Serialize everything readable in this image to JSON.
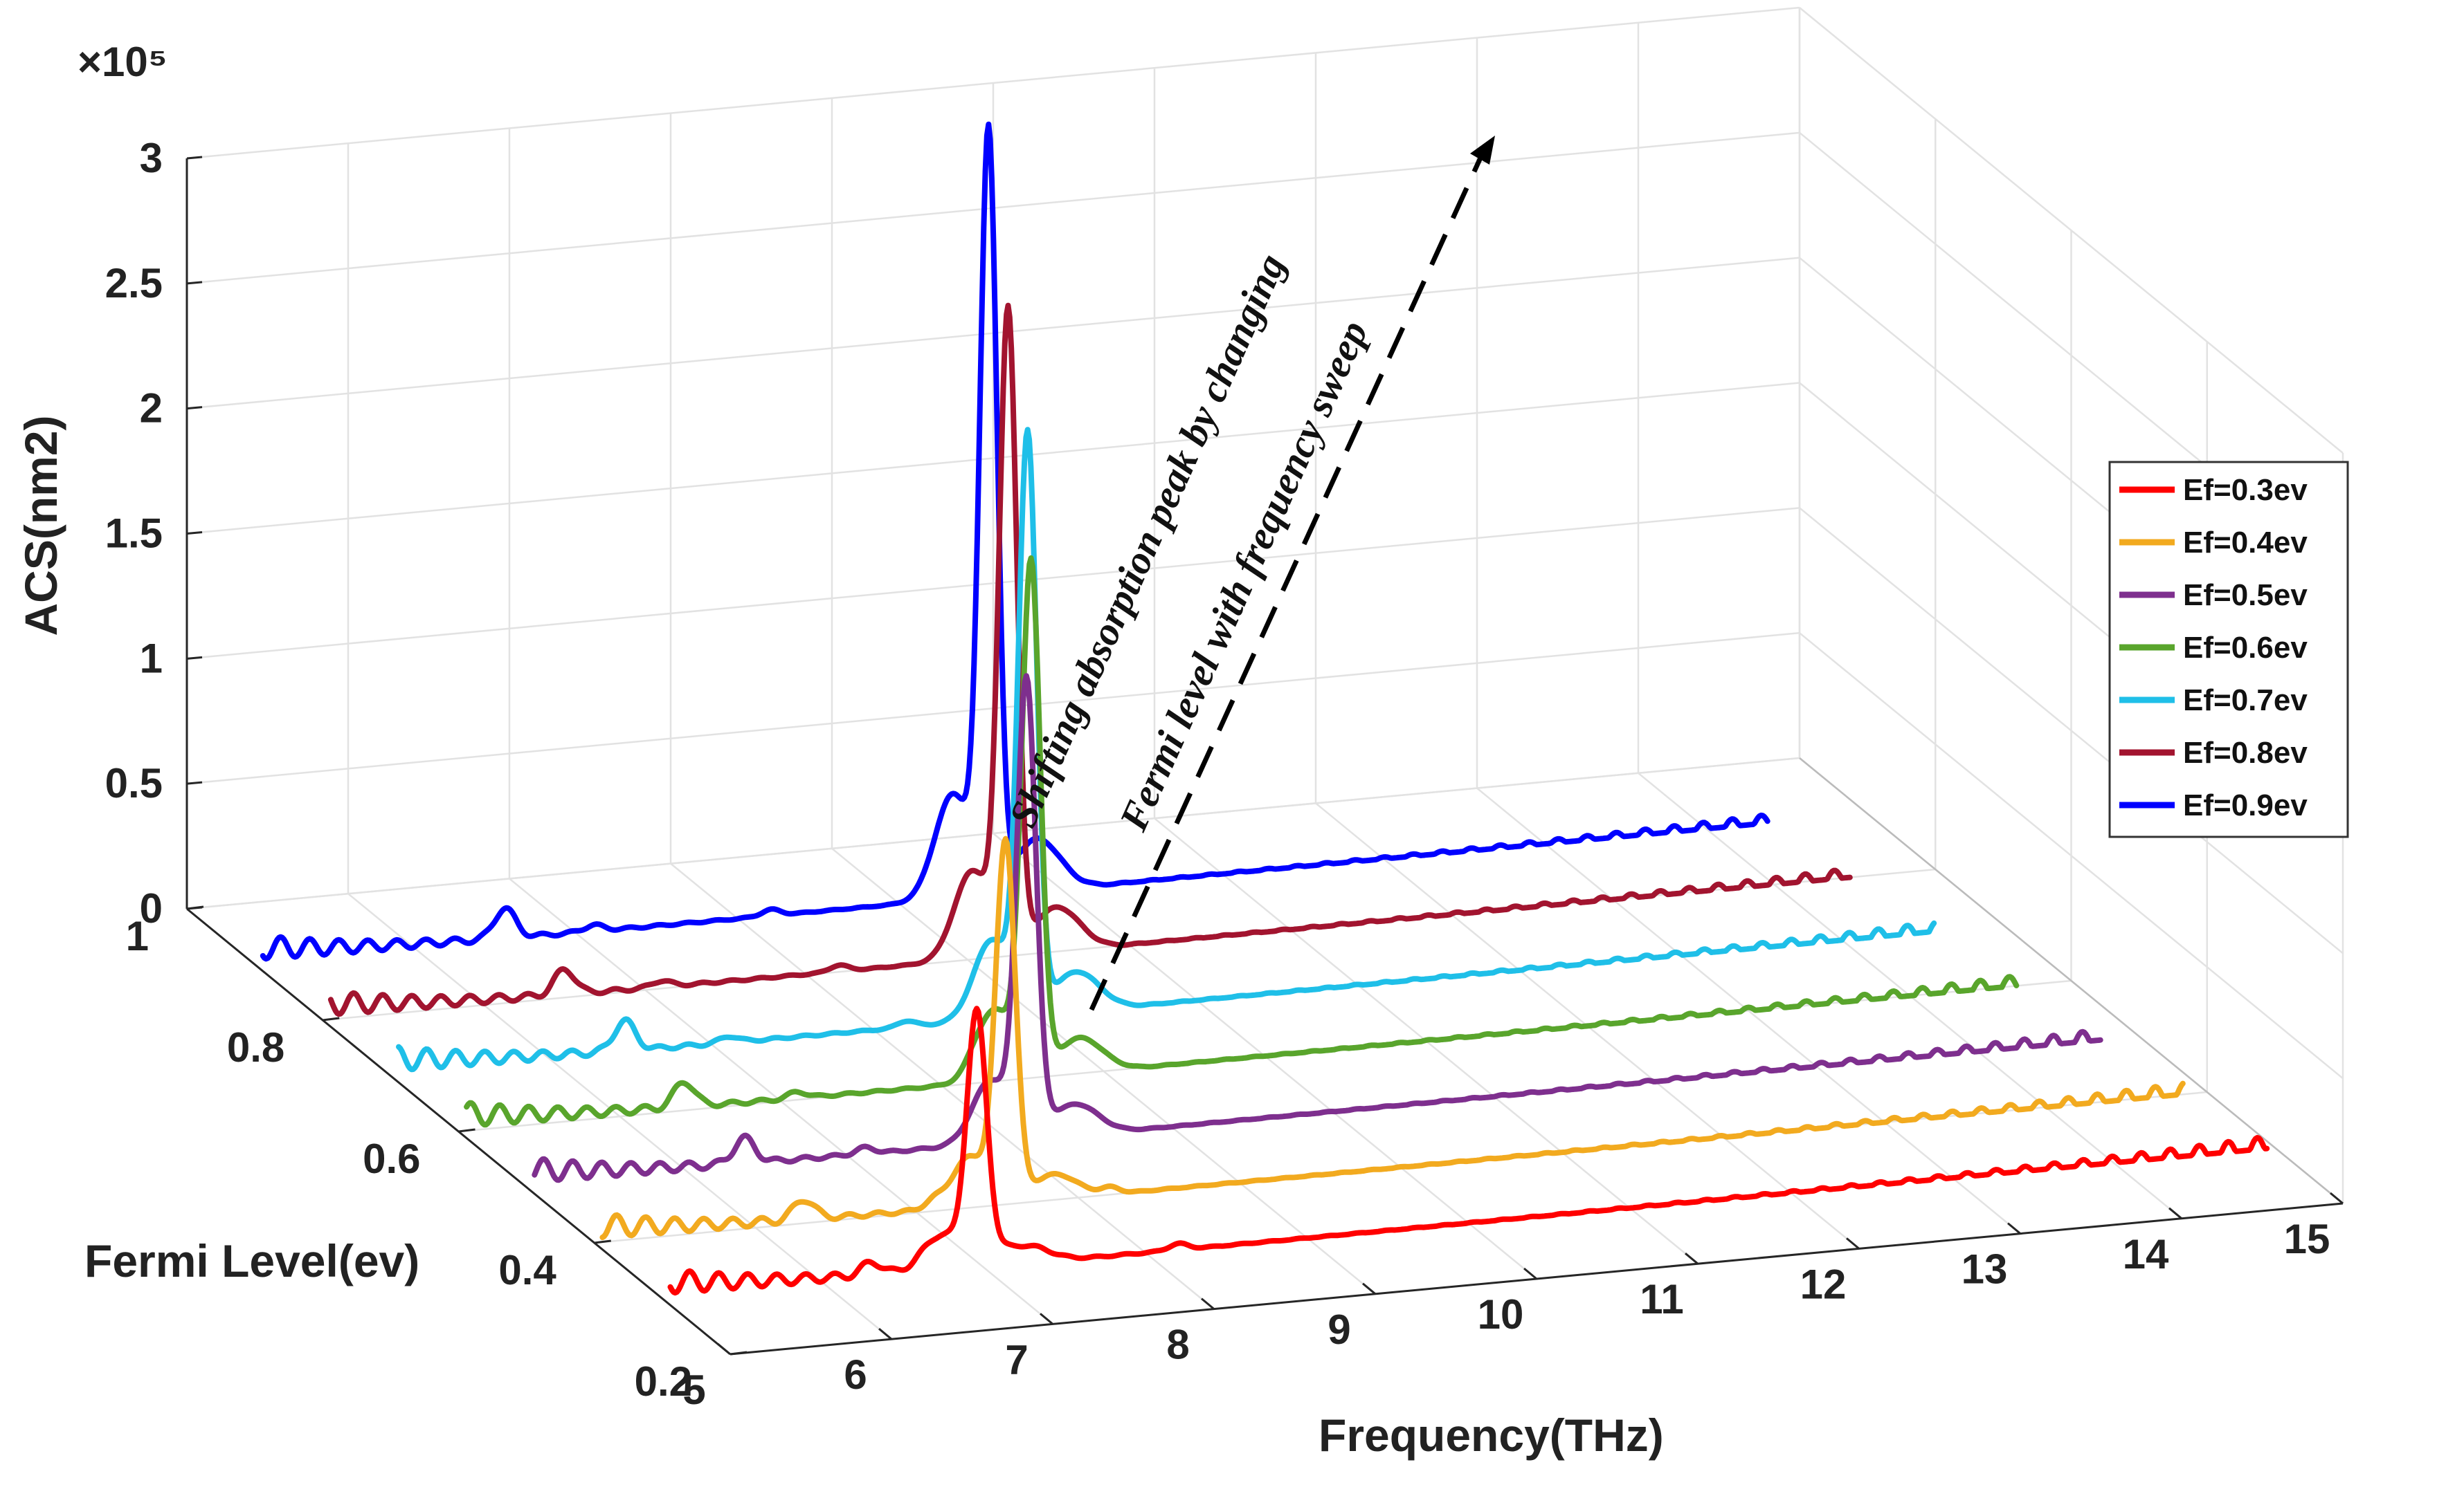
{
  "chart_data": {
    "type": "line",
    "view": "3d-waterfall",
    "multiplier_label": "×10⁵",
    "xlabel": "Frequency(THz)",
    "ylabel": "Fermi Level(ev)",
    "zlabel": "ACS(nm2)",
    "xlim": [
      5,
      15
    ],
    "ylim": [
      0.2,
      1.0
    ],
    "zlim": [
      0,
      3
    ],
    "x_ticks": [
      "5",
      "6",
      "7",
      "8",
      "9",
      "10",
      "11",
      "12",
      "13",
      "14",
      "15"
    ],
    "y_ticks": [
      "0.2",
      "0.4",
      "0.6",
      "0.8",
      "1"
    ],
    "z_ticks": [
      "0",
      "0.5",
      "1",
      "1.5",
      "2",
      "2.5",
      "3"
    ],
    "annotation": {
      "line1": "Shifting absorption peak by changing",
      "line2": "Fermi level with frequency sweep",
      "arrow_from": {
        "frequency": 6.9,
        "fermi": 0.3,
        "acs": 0.2
      },
      "arrow_to": {
        "frequency": 9.4,
        "fermi": 0.9,
        "acs": 3.0
      }
    },
    "legend_position": "right",
    "series": [
      {
        "name": "Ef=0.3ev",
        "fermi": 0.3,
        "color": "#ff0000",
        "peak_frequency": 6.95,
        "peak_acs": 1.0,
        "secondary_peak_frequency": 6.3,
        "secondary_peak_acs": 0.05
      },
      {
        "name": "Ef=0.4ev",
        "fermi": 0.4,
        "color": "#f2aa1f",
        "peak_frequency": 7.55,
        "peak_acs": 1.42,
        "secondary_peak_frequency": 6.3,
        "secondary_peak_acs": 0.08
      },
      {
        "name": "Ef=0.5ev",
        "fermi": 0.5,
        "color": "#7e2f8e",
        "peak_frequency": 8.1,
        "peak_acs": 1.8,
        "secondary_peak_frequency": 6.35,
        "secondary_peak_acs": 0.1
      },
      {
        "name": "Ef=0.6ev",
        "fermi": 0.6,
        "color": "#59a52c",
        "peak_frequency": 8.55,
        "peak_acs": 2.02,
        "secondary_peak_frequency": 6.4,
        "secondary_peak_acs": 0.1
      },
      {
        "name": "Ef=0.7ev",
        "fermi": 0.7,
        "color": "#1fbfe8",
        "peak_frequency": 8.95,
        "peak_acs": 2.28,
        "secondary_peak_frequency": 6.45,
        "secondary_peak_acs": 0.12
      },
      {
        "name": "Ef=0.8ev",
        "fermi": 0.8,
        "color": "#a2142f",
        "peak_frequency": 9.25,
        "peak_acs": 2.53,
        "secondary_peak_frequency": 6.5,
        "secondary_peak_acs": 0.1
      },
      {
        "name": "Ef=0.9ev",
        "fermi": 0.9,
        "color": "#0000ff",
        "peak_frequency": 9.55,
        "peak_acs": 3.0,
        "secondary_peak_frequency": 6.55,
        "secondary_peak_acs": 0.12
      }
    ]
  }
}
